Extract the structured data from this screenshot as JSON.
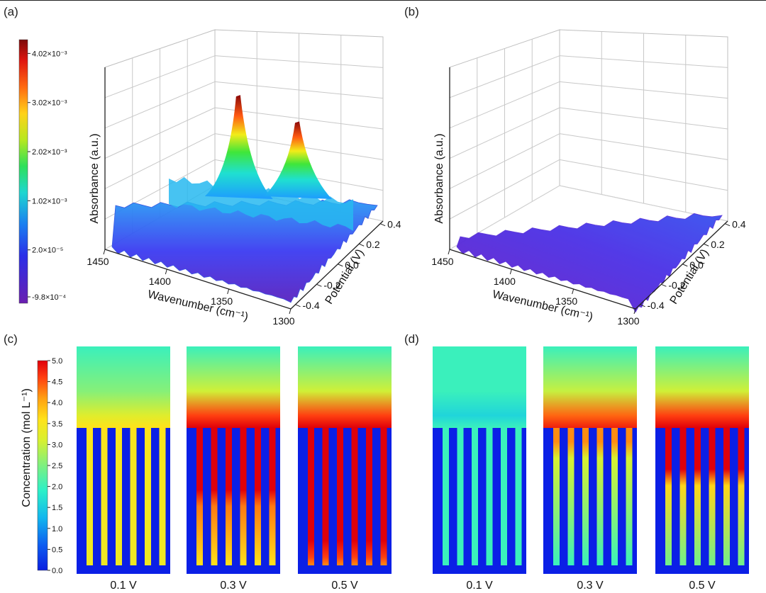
{
  "panels": {
    "a": "(a)",
    "b": "(b)",
    "c": "(c)",
    "d": "(d)"
  },
  "chart_data": [
    {
      "panel": "(a)",
      "type": "surface3d",
      "xlabel": "Wavenumber (cm⁻¹)",
      "ylabel": "Potential (V)",
      "zlabel": "Absorbance (a.u.)",
      "x_ticks": [
        "1450",
        "1400",
        "1350",
        "1300"
      ],
      "y_ticks": [
        "-0.4",
        "-0.2",
        "0.0",
        "0.2",
        "0.4"
      ],
      "xlim": [
        1450,
        1300
      ],
      "ylim": [
        -0.4,
        0.4
      ],
      "colorbar_ticks": [
        "4.02×10⁻³",
        "3.02×10⁻³",
        "2.02×10⁻³",
        "1.02×10⁻³",
        "2.0×10⁻⁵",
        "-9.8×10⁻⁴"
      ],
      "colorbar_values": [
        0.00402,
        0.00302,
        0.00202,
        0.00102,
        2e-05,
        -0.00098
      ],
      "peaks": [
        {
          "wavenumber": 1373,
          "potential": 0.4,
          "absorbance": 0.004
        },
        {
          "wavenumber": 1330,
          "potential": 0.4,
          "absorbance": 0.003
        }
      ]
    },
    {
      "panel": "(b)",
      "type": "surface3d",
      "xlabel": "Wavenumber (cm⁻¹)",
      "ylabel": "Potential (V)",
      "zlabel": "Absorbance (a.u.)",
      "x_ticks": [
        "1450",
        "1400",
        "1350",
        "1300"
      ],
      "y_ticks": [
        "-0.4",
        "-0.2",
        "0.0",
        "0.2",
        "0.4"
      ],
      "xlim": [
        1450,
        1300
      ],
      "ylim": [
        -0.4,
        0.4
      ],
      "peaks": []
    },
    {
      "panel": "(c)",
      "type": "heatmap",
      "colorbar_label": "Concentration (mol L⁻¹)",
      "colorbar_ticks": [
        "5.0",
        "4.5",
        "4.0",
        "3.5",
        "3.0",
        "2.5",
        "2.0",
        "1.5",
        "1.0",
        "0.5",
        "0.0"
      ],
      "colorbar_range": [
        0,
        5
      ],
      "maps": [
        {
          "label": "0.1 V",
          "bulk_top": 2.0,
          "interface": 3.6,
          "channel_top": 3.6,
          "channel_bottom": 3.4,
          "red_fraction": 0
        },
        {
          "label": "0.3 V",
          "bulk_top": 2.0,
          "interface": 5.0,
          "channel_top": 5.0,
          "channel_bottom": 3.6,
          "red_fraction": 0.45
        },
        {
          "label": "0.5 V",
          "bulk_top": 2.0,
          "interface": 5.0,
          "channel_top": 5.0,
          "channel_bottom": 4.2,
          "red_fraction": 0.82
        }
      ]
    },
    {
      "panel": "(d)",
      "type": "heatmap",
      "colorbar_range": [
        0,
        5
      ],
      "maps": [
        {
          "label": "0.1 V",
          "bulk_top": 2.0,
          "interface": 2.0,
          "channel_top": 2.0,
          "channel_bottom": 2.0,
          "red_fraction": 0
        },
        {
          "label": "0.3 V",
          "bulk_top": 2.0,
          "interface": 4.8,
          "channel_top": 4.2,
          "channel_bottom": 2.0,
          "red_fraction": 0.1
        },
        {
          "label": "0.5 V",
          "bulk_top": 2.0,
          "interface": 5.0,
          "channel_top": 5.0,
          "channel_bottom": 2.4,
          "red_fraction": 0.3
        }
      ]
    }
  ]
}
